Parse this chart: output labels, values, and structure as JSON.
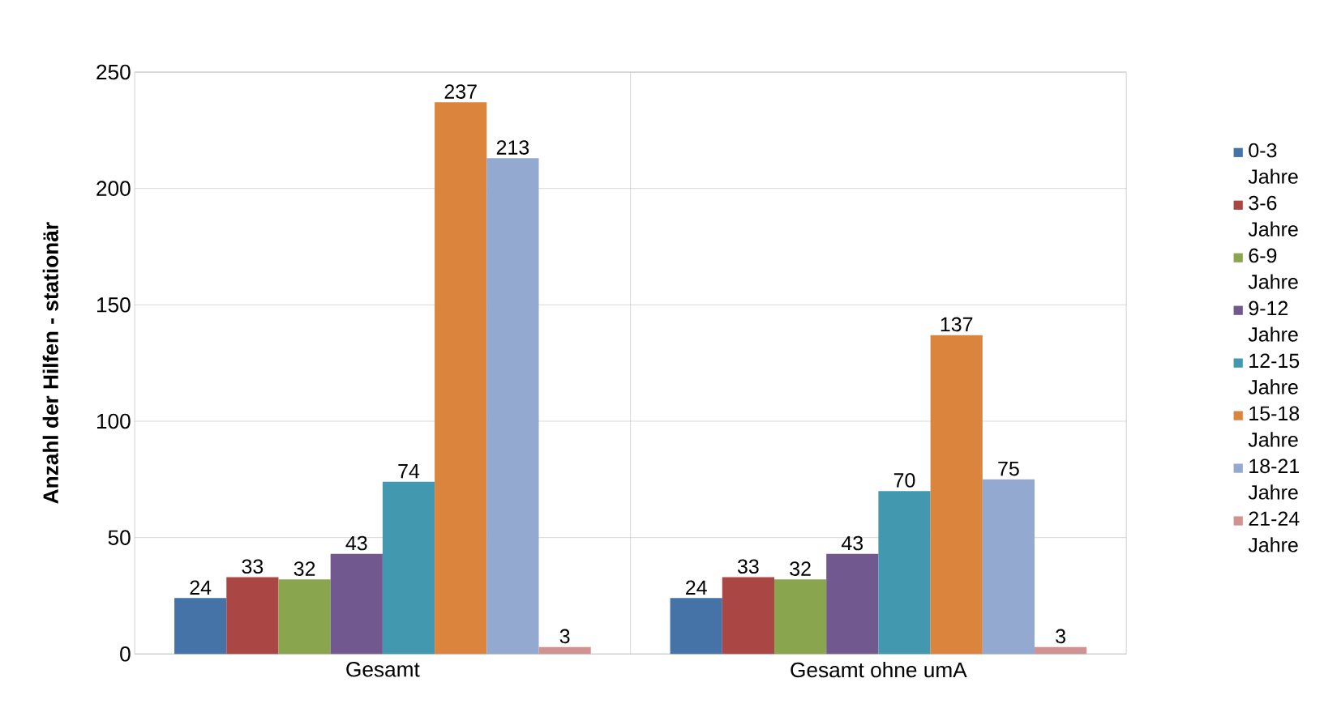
{
  "chart_data": {
    "type": "bar",
    "ylabel": "Anzahl der Hilfen - stationär",
    "categories": [
      "Gesamt",
      "Gesamt ohne umA"
    ],
    "series": [
      {
        "name": "0-3 Jahre",
        "color": "#4572a7",
        "values": [
          24,
          24
        ]
      },
      {
        "name": "3-6 Jahre",
        "color": "#aa4643",
        "values": [
          33,
          33
        ]
      },
      {
        "name": "6-9 Jahre",
        "color": "#89a54e",
        "values": [
          32,
          32
        ]
      },
      {
        "name": "9-12 Jahre",
        "color": "#71588f",
        "values": [
          43,
          43
        ]
      },
      {
        "name": "12-15 Jahre",
        "color": "#4198af",
        "values": [
          74,
          70
        ]
      },
      {
        "name": "15-18 Jahre",
        "color": "#db843d",
        "values": [
          237,
          137
        ]
      },
      {
        "name": "18-21 Jahre",
        "color": "#93a9cf",
        "values": [
          213,
          75
        ]
      },
      {
        "name": "21-24 Jahre",
        "color": "#d19392",
        "values": [
          3,
          3
        ]
      }
    ],
    "ylim": [
      0,
      250
    ],
    "yticks": [
      0,
      50,
      100,
      150,
      200,
      250
    ],
    "grid": true,
    "legend": "right",
    "data_labels": true
  }
}
